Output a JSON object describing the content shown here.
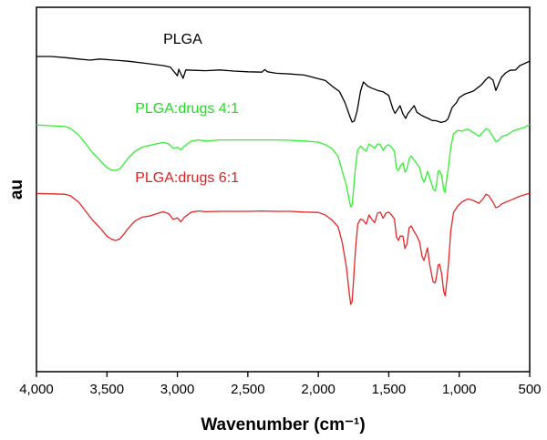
{
  "chart_data": {
    "type": "line",
    "xlabel": "Wavenumber (cm⁻¹)",
    "ylabel": "au",
    "xlim": [
      4000,
      500
    ],
    "x_reversed": true,
    "x_ticks": [
      4000,
      3500,
      3000,
      2500,
      2000,
      1500,
      1000,
      500
    ],
    "x_tick_labels": [
      "4,000",
      "3,500",
      "3,000",
      "2,500",
      "2,000",
      "1,500",
      "1,000",
      "500"
    ],
    "ylim": [
      0,
      100
    ],
    "y_ticks_shown": false,
    "grid": false,
    "legend": "none",
    "series": [
      {
        "name": "PLGA",
        "color": "#000000",
        "points": [
          [
            4000,
            86.5
          ],
          [
            3900,
            86.5
          ],
          [
            3800,
            86.2
          ],
          [
            3700,
            85.8
          ],
          [
            3620,
            85.5
          ],
          [
            3550,
            85.8
          ],
          [
            3450,
            85.5
          ],
          [
            3350,
            85.2
          ],
          [
            3200,
            84.5
          ],
          [
            3100,
            84.0
          ],
          [
            3050,
            83.6
          ],
          [
            3000,
            81.2
          ],
          [
            2990,
            83.0
          ],
          [
            2960,
            80.5
          ],
          [
            2940,
            82.8
          ],
          [
            2880,
            82.7
          ],
          [
            2800,
            82.6
          ],
          [
            2700,
            82.8
          ],
          [
            2600,
            82.5
          ],
          [
            2500,
            82.3
          ],
          [
            2400,
            82.2
          ],
          [
            2380,
            82.9
          ],
          [
            2360,
            82.3
          ],
          [
            2300,
            81.9
          ],
          [
            2200,
            81.7
          ],
          [
            2100,
            81.4
          ],
          [
            2000,
            80.4
          ],
          [
            1950,
            79.9
          ],
          [
            1900,
            78.3
          ],
          [
            1850,
            76.9
          ],
          [
            1810,
            73.8
          ],
          [
            1780,
            70.5
          ],
          [
            1760,
            68.5
          ],
          [
            1745,
            68.8
          ],
          [
            1725,
            71.5
          ],
          [
            1700,
            77.0
          ],
          [
            1680,
            79.5
          ],
          [
            1650,
            78.4
          ],
          [
            1620,
            77.8
          ],
          [
            1580,
            77.2
          ],
          [
            1540,
            76.8
          ],
          [
            1500,
            75.8
          ],
          [
            1470,
            72.0
          ],
          [
            1455,
            70.9
          ],
          [
            1440,
            71.8
          ],
          [
            1420,
            73.0
          ],
          [
            1400,
            70.8
          ],
          [
            1380,
            69.5
          ],
          [
            1365,
            70.8
          ],
          [
            1350,
            71.5
          ],
          [
            1320,
            73.0
          ],
          [
            1300,
            71.2
          ],
          [
            1270,
            70.4
          ],
          [
            1250,
            70.0
          ],
          [
            1220,
            69.5
          ],
          [
            1190,
            68.9
          ],
          [
            1170,
            68.9
          ],
          [
            1150,
            68.7
          ],
          [
            1130,
            68.4
          ],
          [
            1100,
            68.7
          ],
          [
            1080,
            69.3
          ],
          [
            1050,
            72.5
          ],
          [
            1020,
            73.8
          ],
          [
            1000,
            75.2
          ],
          [
            960,
            76.2
          ],
          [
            900,
            77.0
          ],
          [
            860,
            78.2
          ],
          [
            840,
            78.8
          ],
          [
            810,
            80.2
          ],
          [
            790,
            80.9
          ],
          [
            760,
            80.0
          ],
          [
            740,
            77.2
          ],
          [
            720,
            79.0
          ],
          [
            700,
            80.8
          ],
          [
            670,
            82.0
          ],
          [
            640,
            82.7
          ],
          [
            600,
            82.8
          ],
          [
            570,
            84.0
          ],
          [
            540,
            84.5
          ],
          [
            500,
            85.2
          ]
        ]
      },
      {
        "name": "PLGA:drugs 4:1",
        "color": "#33ee33",
        "points": [
          [
            4000,
            67.7
          ],
          [
            3900,
            67.5
          ],
          [
            3800,
            67.3
          ],
          [
            3760,
            66.8
          ],
          [
            3700,
            64.9
          ],
          [
            3650,
            62.5
          ],
          [
            3600,
            60.0
          ],
          [
            3550,
            58.0
          ],
          [
            3500,
            56.0
          ],
          [
            3470,
            55.4
          ],
          [
            3440,
            55.2
          ],
          [
            3410,
            55.6
          ],
          [
            3380,
            57.0
          ],
          [
            3350,
            58.6
          ],
          [
            3300,
            60.5
          ],
          [
            3250,
            61.6
          ],
          [
            3200,
            62.1
          ],
          [
            3150,
            62.5
          ],
          [
            3100,
            62.9
          ],
          [
            3060,
            62.5
          ],
          [
            3030,
            61.3
          ],
          [
            3000,
            61.6
          ],
          [
            2975,
            60.9
          ],
          [
            2950,
            61.9
          ],
          [
            2900,
            63.3
          ],
          [
            2850,
            63.6
          ],
          [
            2800,
            63.3
          ],
          [
            2700,
            63.6
          ],
          [
            2600,
            63.6
          ],
          [
            2500,
            63.6
          ],
          [
            2400,
            63.6
          ],
          [
            2300,
            63.6
          ],
          [
            2200,
            63.5
          ],
          [
            2100,
            63.3
          ],
          [
            2000,
            63.0
          ],
          [
            1950,
            62.3
          ],
          [
            1900,
            61.1
          ],
          [
            1860,
            59.1
          ],
          [
            1830,
            55.0
          ],
          [
            1800,
            51.0
          ],
          [
            1780,
            47.0
          ],
          [
            1770,
            45.2
          ],
          [
            1760,
            45.8
          ],
          [
            1750,
            50.0
          ],
          [
            1735,
            56.5
          ],
          [
            1720,
            60.9
          ],
          [
            1700,
            61.9
          ],
          [
            1680,
            61.1
          ],
          [
            1660,
            60.5
          ],
          [
            1640,
            62.5
          ],
          [
            1620,
            61.9
          ],
          [
            1600,
            61.3
          ],
          [
            1580,
            62.5
          ],
          [
            1560,
            62.3
          ],
          [
            1540,
            60.7
          ],
          [
            1520,
            61.9
          ],
          [
            1500,
            62.3
          ],
          [
            1480,
            61.6
          ],
          [
            1460,
            60.5
          ],
          [
            1445,
            55.8
          ],
          [
            1430,
            55.2
          ],
          [
            1420,
            56.3
          ],
          [
            1400,
            57.3
          ],
          [
            1385,
            54.8
          ],
          [
            1370,
            55.7
          ],
          [
            1355,
            58.4
          ],
          [
            1340,
            59.2
          ],
          [
            1325,
            58.3
          ],
          [
            1300,
            57.0
          ],
          [
            1280,
            56.0
          ],
          [
            1265,
            53.3
          ],
          [
            1250,
            52.0
          ],
          [
            1240,
            53.0
          ],
          [
            1225,
            55.0
          ],
          [
            1210,
            53.1
          ],
          [
            1195,
            51.5
          ],
          [
            1185,
            50.1
          ],
          [
            1170,
            49.6
          ],
          [
            1160,
            51.8
          ],
          [
            1150,
            55.0
          ],
          [
            1140,
            55.2
          ],
          [
            1125,
            53.9
          ],
          [
            1110,
            50.0
          ],
          [
            1100,
            49.2
          ],
          [
            1090,
            52.5
          ],
          [
            1075,
            56.5
          ],
          [
            1060,
            61.5
          ],
          [
            1040,
            65.3
          ],
          [
            1010,
            66.2
          ],
          [
            980,
            66.0
          ],
          [
            940,
            66.6
          ],
          [
            900,
            65.6
          ],
          [
            860,
            64.6
          ],
          [
            830,
            65.8
          ],
          [
            810,
            66.7
          ],
          [
            790,
            66.3
          ],
          [
            760,
            64.5
          ],
          [
            740,
            63.1
          ],
          [
            720,
            63.5
          ],
          [
            700,
            64.5
          ],
          [
            660,
            65.0
          ],
          [
            620,
            66.0
          ],
          [
            580,
            66.6
          ],
          [
            540,
            67.0
          ],
          [
            500,
            67.8
          ]
        ]
      },
      {
        "name": "PLGA:drugs 6:1",
        "color": "#e32626",
        "points": [
          [
            4000,
            48.9
          ],
          [
            3900,
            48.8
          ],
          [
            3800,
            48.7
          ],
          [
            3760,
            48.3
          ],
          [
            3700,
            46.5
          ],
          [
            3650,
            44.0
          ],
          [
            3600,
            41.5
          ],
          [
            3550,
            39.5
          ],
          [
            3500,
            37.2
          ],
          [
            3470,
            36.4
          ],
          [
            3440,
            36.0
          ],
          [
            3410,
            36.4
          ],
          [
            3380,
            37.7
          ],
          [
            3350,
            39.3
          ],
          [
            3300,
            41.4
          ],
          [
            3250,
            42.4
          ],
          [
            3200,
            42.7
          ],
          [
            3150,
            43.3
          ],
          [
            3100,
            43.9
          ],
          [
            3060,
            43.3
          ],
          [
            3030,
            41.8
          ],
          [
            3000,
            42.2
          ],
          [
            2975,
            41.1
          ],
          [
            2950,
            42.4
          ],
          [
            2900,
            43.8
          ],
          [
            2850,
            44.1
          ],
          [
            2800,
            43.9
          ],
          [
            2700,
            44.0
          ],
          [
            2600,
            44.0
          ],
          [
            2500,
            44.0
          ],
          [
            2400,
            44.1
          ],
          [
            2300,
            44.0
          ],
          [
            2200,
            44.0
          ],
          [
            2100,
            43.8
          ],
          [
            2000,
            43.7
          ],
          [
            1950,
            43.0
          ],
          [
            1900,
            41.5
          ],
          [
            1860,
            39.8
          ],
          [
            1830,
            35.5
          ],
          [
            1800,
            28.5
          ],
          [
            1780,
            21.5
          ],
          [
            1770,
            18.5
          ],
          [
            1760,
            19.2
          ],
          [
            1750,
            25.0
          ],
          [
            1735,
            34.0
          ],
          [
            1720,
            40.5
          ],
          [
            1700,
            41.9
          ],
          [
            1680,
            41.5
          ],
          [
            1660,
            40.5
          ],
          [
            1640,
            43.0
          ],
          [
            1620,
            41.8
          ],
          [
            1600,
            40.9
          ],
          [
            1580,
            43.5
          ],
          [
            1560,
            43.8
          ],
          [
            1540,
            42.1
          ],
          [
            1520,
            43.5
          ],
          [
            1500,
            43.8
          ],
          [
            1480,
            43.0
          ],
          [
            1460,
            41.9
          ],
          [
            1445,
            37.0
          ],
          [
            1430,
            36.0
          ],
          [
            1420,
            37.2
          ],
          [
            1400,
            37.2
          ],
          [
            1385,
            33.8
          ],
          [
            1370,
            35.2
          ],
          [
            1355,
            39.5
          ],
          [
            1340,
            40.0
          ],
          [
            1325,
            38.8
          ],
          [
            1300,
            37.2
          ],
          [
            1280,
            35.5
          ],
          [
            1265,
            31.8
          ],
          [
            1250,
            30.5
          ],
          [
            1240,
            31.9
          ],
          [
            1225,
            34.0
          ],
          [
            1210,
            29.5
          ],
          [
            1195,
            26.5
          ],
          [
            1185,
            24.6
          ],
          [
            1170,
            24.4
          ],
          [
            1160,
            26.5
          ],
          [
            1150,
            29.2
          ],
          [
            1140,
            29.5
          ],
          [
            1125,
            27.0
          ],
          [
            1110,
            22.0
          ],
          [
            1100,
            20.8
          ],
          [
            1090,
            24.0
          ],
          [
            1075,
            30.0
          ],
          [
            1060,
            38.5
          ],
          [
            1040,
            43.7
          ],
          [
            1010,
            45.5
          ],
          [
            980,
            46.6
          ],
          [
            940,
            47.4
          ],
          [
            900,
            47.0
          ],
          [
            860,
            46.2
          ],
          [
            830,
            47.5
          ],
          [
            810,
            48.7
          ],
          [
            790,
            48.3
          ],
          [
            760,
            46.5
          ],
          [
            740,
            45.0
          ],
          [
            720,
            45.3
          ],
          [
            700,
            46.0
          ],
          [
            660,
            46.7
          ],
          [
            620,
            47.3
          ],
          [
            580,
            48.0
          ],
          [
            540,
            48.5
          ],
          [
            500,
            49.0
          ]
        ]
      }
    ],
    "annotations": [
      {
        "text": "PLGA",
        "x": 3100,
        "y": 90,
        "color": "#000000"
      },
      {
        "text": "PLGA:drugs 4:1",
        "x": 3300,
        "y": 71,
        "color": "#22dd22"
      },
      {
        "text": "PLGA:drugs 6:1",
        "x": 3300,
        "y": 52,
        "color": "#dd1f1f"
      }
    ]
  }
}
